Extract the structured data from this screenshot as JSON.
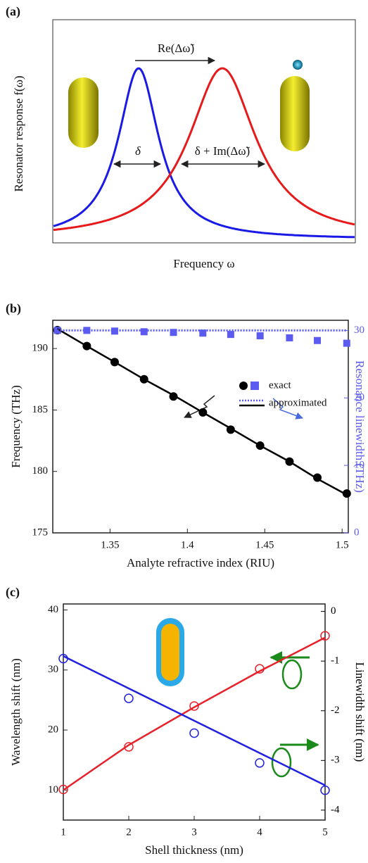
{
  "chart_data": [
    {
      "type": "schematic",
      "panel_label": "(a)",
      "ylabel": "Resonator response f(ω)",
      "xlabel": "Frequency ω",
      "annotations": [
        "Re(Δω̃)",
        "δ",
        "δ + Im(Δω̃)"
      ]
    },
    {
      "type": "dual_axis",
      "panel_label": "(b)",
      "xlabel": "Analyte refractive index (RIU)",
      "ylabel": "Frequency (THz)",
      "y2label": "Resonance linewidth (THz)",
      "y2color": "#5b5bf0",
      "x": [
        1.316,
        1.335,
        1.353,
        1.372,
        1.391,
        1.41,
        1.428,
        1.447,
        1.466,
        1.484,
        1.503
      ],
      "xlim": [
        1.313,
        1.504
      ],
      "xticks": [
        1.35,
        1.4,
        1.45,
        1.5
      ],
      "ylim": [
        175,
        192.3
      ],
      "yticks": [
        175,
        180,
        185,
        190
      ],
      "y2lim": [
        0,
        31.5
      ],
      "y2ticks": [
        0,
        10,
        20,
        30
      ],
      "legend_labels": [
        "exact",
        "approximated"
      ],
      "series": [
        {
          "color": "#000000",
          "marker": "circle",
          "values": [
            191.5,
            190.2,
            188.9,
            187.5,
            186.1,
            184.8,
            183.4,
            182.1,
            180.8,
            179.5,
            178.2
          ]
        },
        {
          "color": "#5b5bf0",
          "marker": "square",
          "axis": "y2",
          "values": [
            30.0,
            30.0,
            29.9,
            29.8,
            29.7,
            29.6,
            29.4,
            29.2,
            28.9,
            28.5,
            28.1
          ]
        },
        {
          "color": "#000000",
          "style": "solid",
          "values": [
            191.6,
            190.2,
            188.9,
            187.5,
            186.2,
            184.8,
            183.5,
            182.1,
            180.8,
            179.4,
            178.1
          ]
        },
        {
          "color": "#5b5bf0",
          "style": "dotted",
          "axis": "y2",
          "values": [
            30,
            30,
            30,
            30,
            30,
            30,
            30,
            30,
            30,
            30,
            30
          ]
        }
      ]
    },
    {
      "type": "dual_axis",
      "panel_label": "(c)",
      "xlabel": "Shell thickness (nm)",
      "ylabel": "Wavelength shift (nm)",
      "y2label": "Linewidth shift (nm)",
      "y2color": "#000000",
      "x": [
        1,
        2,
        3,
        4,
        5
      ],
      "xlim": [
        1,
        5
      ],
      "xticks": [
        1,
        2,
        3,
        4,
        5
      ],
      "ylim": [
        5,
        41
      ],
      "yticks": [
        10,
        20,
        30,
        40
      ],
      "y2lim": [
        -4.2,
        0.15
      ],
      "y2ticks": [
        0,
        -1,
        -2,
        -3,
        -4
      ],
      "series": [
        {
          "color": "#e8202a",
          "style": "solid",
          "values": [
            10.0,
            17.5,
            23.8,
            29.8,
            35.4
          ]
        },
        {
          "color": "#e8202a",
          "marker": "open-circle",
          "values": [
            10.1,
            17.2,
            24.0,
            30.2,
            35.7
          ]
        },
        {
          "color": "#2020e0",
          "style": "solid",
          "axis": "y2",
          "values": [
            -0.9,
            -1.55,
            -2.2,
            -2.85,
            -3.5
          ]
        },
        {
          "color": "#2020e0",
          "marker": "open-circle",
          "axis": "y2",
          "values": [
            -0.95,
            -1.75,
            -2.45,
            -3.05,
            -3.6
          ]
        }
      ]
    }
  ]
}
